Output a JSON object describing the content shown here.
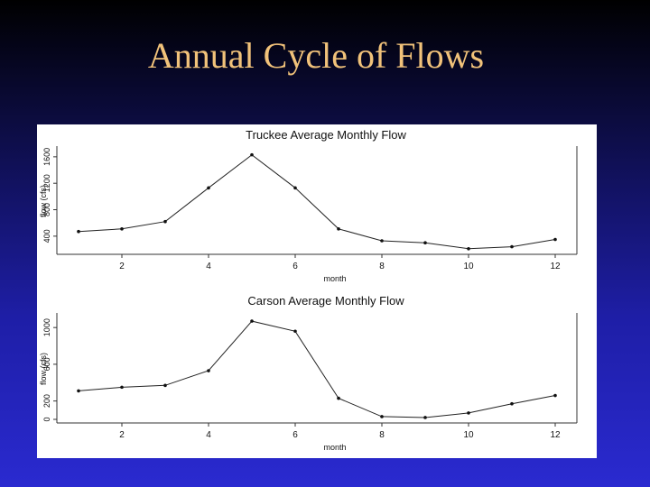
{
  "slide": {
    "title": "Annual Cycle of Flows"
  },
  "chart_data": [
    {
      "type": "line",
      "title": "Truckee Average Monthly Flow",
      "xlabel": "month",
      "ylabel": "flow (cfs)",
      "x": [
        1,
        2,
        3,
        4,
        5,
        6,
        7,
        8,
        9,
        10,
        11,
        12
      ],
      "values": [
        470,
        510,
        620,
        1130,
        1630,
        1130,
        510,
        330,
        300,
        210,
        240,
        350
      ],
      "xticks": [
        2,
        4,
        6,
        8,
        10,
        12
      ],
      "xtick_labels": [
        "2",
        "4",
        "6",
        "8",
        "10",
        "12"
      ],
      "yticks": [
        400,
        800,
        1200,
        1600
      ],
      "ytick_labels": [
        "400",
        "800",
        "1200",
        "1600"
      ],
      "xlim": [
        0.5,
        12.5
      ],
      "ylim": [
        180,
        1680
      ],
      "grid": false
    },
    {
      "type": "line",
      "title": "Carson Average Monthly Flow",
      "xlabel": "month",
      "ylabel": "flow (cfs)",
      "x": [
        1,
        2,
        3,
        4,
        5,
        6,
        7,
        8,
        9,
        10,
        11,
        12
      ],
      "values": [
        310,
        350,
        370,
        530,
        1070,
        960,
        230,
        30,
        20,
        70,
        170,
        260
      ],
      "xticks": [
        2,
        4,
        6,
        8,
        10,
        12
      ],
      "xtick_labels": [
        "2",
        "4",
        "6",
        "8",
        "10",
        "12"
      ],
      "yticks": [
        0,
        200,
        600,
        1000
      ],
      "ytick_labels": [
        "0",
        "200",
        "600",
        "1000"
      ],
      "xlim": [
        0.5,
        12.5
      ],
      "ylim": [
        0,
        1100
      ],
      "grid": false
    }
  ]
}
